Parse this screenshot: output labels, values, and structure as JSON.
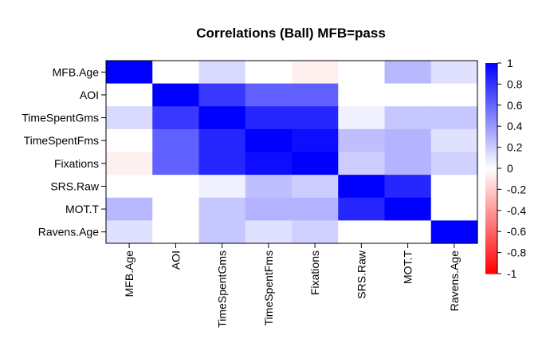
{
  "chart_data": {
    "type": "heatmap",
    "title": "Correlations (Ball) MFB=pass",
    "xlabel": "",
    "ylabel": "",
    "rows": [
      "MFB.Age",
      "AOI",
      "TimeSpentGms",
      "TimeSpentFms",
      "Fixations",
      "SRS.Raw",
      "MOT.T",
      "Ravens.Age"
    ],
    "columns": [
      "MFB.Age",
      "AOI",
      "TimeSpentGms",
      "TimeSpentFms",
      "Fixations",
      "SRS.Raw",
      "MOT.T",
      "Ravens.Age"
    ],
    "values": [
      [
        1.0,
        0.0,
        0.15,
        0.0,
        -0.06,
        0.0,
        0.28,
        0.12
      ],
      [
        0.0,
        1.0,
        0.78,
        0.62,
        0.62,
        0.0,
        0.0,
        0.0
      ],
      [
        0.15,
        0.78,
        1.0,
        0.85,
        0.85,
        0.06,
        0.22,
        0.22
      ],
      [
        0.0,
        0.62,
        0.85,
        1.0,
        0.95,
        0.25,
        0.3,
        0.12
      ],
      [
        -0.06,
        0.62,
        0.85,
        0.95,
        1.0,
        0.2,
        0.3,
        0.18
      ],
      [
        0.0,
        0.0,
        0.06,
        0.25,
        0.2,
        1.0,
        0.85,
        0.0
      ],
      [
        0.28,
        0.0,
        0.22,
        0.3,
        0.3,
        0.85,
        1.0,
        0.0
      ],
      [
        0.12,
        0.0,
        0.22,
        0.12,
        0.18,
        0.0,
        0.0,
        1.0
      ]
    ],
    "color_scale": {
      "low": "#ff0000",
      "mid": "#ffffff",
      "high": "#0000ff",
      "range": [
        -1,
        1
      ]
    },
    "legend": {
      "placement": "right",
      "ticks": [
        "1",
        "0.8",
        "0.6",
        "0.4",
        "0.2",
        "0",
        "-0.2",
        "-0.4",
        "-0.6",
        "-0.8",
        "-1"
      ]
    }
  }
}
